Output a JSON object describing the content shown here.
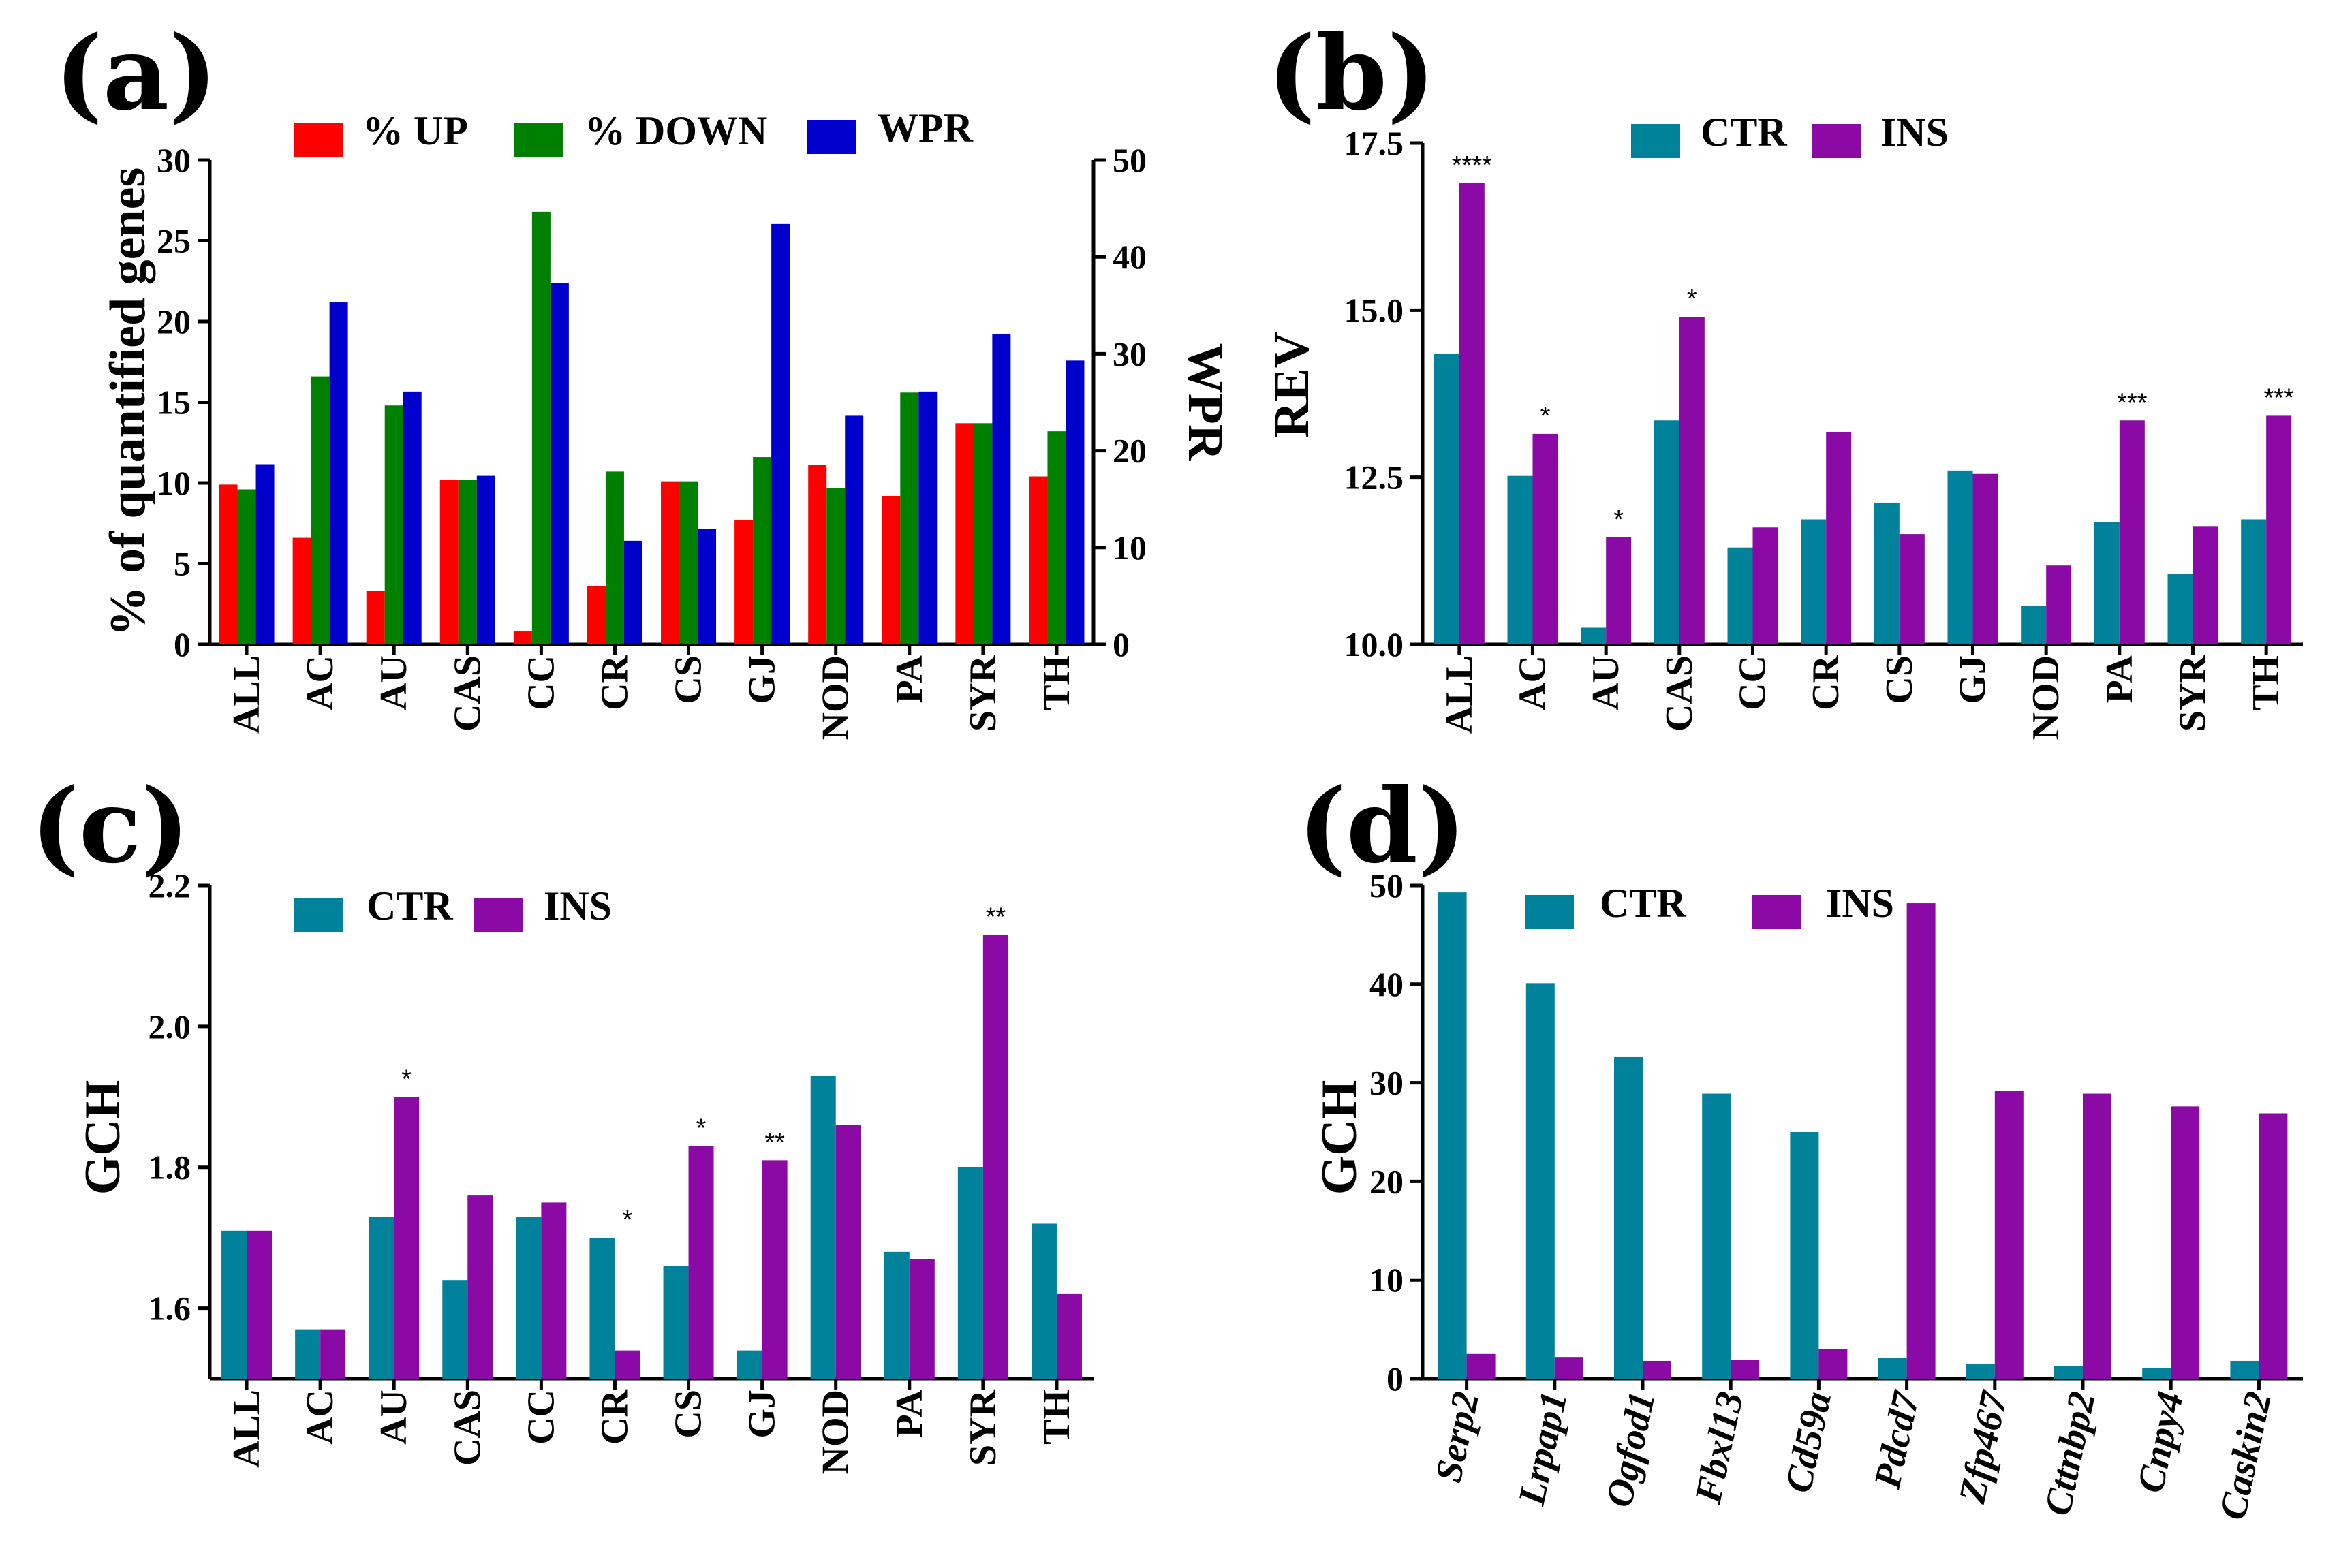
{
  "colors": {
    "up": "#FF0000",
    "down": "#008000",
    "wpr": "#0000CC",
    "ctr": "#00829B",
    "ins": "#8B0AA5"
  },
  "chart_data": [
    {
      "panel": "(a)",
      "type": "bar",
      "categories": [
        "ALL",
        "AC",
        "AU",
        "CAS",
        "CC",
        "CR",
        "CS",
        "GJ",
        "NOD",
        "PA",
        "SYR",
        "TH"
      ],
      "series": [
        {
          "name": "% UP",
          "axis": "left",
          "color_key": "up",
          "values": [
            9.9,
            6.6,
            3.3,
            10.2,
            0.8,
            3.6,
            10.1,
            7.7,
            11.1,
            9.2,
            13.7,
            10.4
          ]
        },
        {
          "name": "% DOWN",
          "axis": "left",
          "color_key": "down",
          "values": [
            9.6,
            16.6,
            14.8,
            10.2,
            26.8,
            10.7,
            10.1,
            11.6,
            9.7,
            15.6,
            13.7,
            13.2
          ]
        },
        {
          "name": "WPR",
          "axis": "right",
          "color_key": "wpr",
          "values": [
            18.6,
            35.3,
            26.1,
            17.4,
            37.3,
            10.7,
            11.9,
            43.4,
            23.6,
            26.1,
            32.0,
            29.3
          ]
        }
      ],
      "ylabel": "% of quantified genes",
      "ylabel_right": "WPR",
      "ylim": [
        0,
        30
      ],
      "yticks": [
        0,
        5,
        10,
        15,
        20,
        25,
        30
      ],
      "ylim_right": [
        0,
        50
      ],
      "yticks_right": [
        0,
        10,
        20,
        30,
        40,
        50
      ],
      "legend": "top"
    },
    {
      "panel": "(b)",
      "type": "bar",
      "categories": [
        "ALL",
        "AC",
        "AU",
        "CAS",
        "CC",
        "CR",
        "CS",
        "GJ",
        "NOD",
        "PA",
        "SYR",
        "TH"
      ],
      "series": [
        {
          "name": "CTR",
          "color_key": "ctr",
          "values": [
            14.35,
            12.52,
            10.25,
            13.35,
            11.45,
            11.87,
            12.12,
            12.6,
            10.58,
            11.83,
            11.05,
            11.87
          ]
        },
        {
          "name": "INS",
          "color_key": "ins",
          "values": [
            16.9,
            13.15,
            11.6,
            14.9,
            11.75,
            13.18,
            11.65,
            12.55,
            11.18,
            13.35,
            11.77,
            13.42
          ]
        }
      ],
      "significance": [
        "****",
        "*",
        "*",
        "*",
        "",
        "",
        "",
        "",
        "",
        "***",
        "",
        "***"
      ],
      "ylabel": "REV",
      "ylim": [
        10.0,
        17.5
      ],
      "yticks": [
        "10.0",
        "12.5",
        "15.0",
        "17.5"
      ],
      "legend": "top"
    },
    {
      "panel": "(c)",
      "type": "bar",
      "categories": [
        "ALL",
        "AC",
        "AU",
        "CAS",
        "CC",
        "CR",
        "CS",
        "GJ",
        "NOD",
        "PA",
        "SYR",
        "TH"
      ],
      "series": [
        {
          "name": "CTR",
          "color_key": "ctr",
          "values": [
            1.71,
            1.57,
            1.73,
            1.64,
            1.73,
            1.7,
            1.66,
            1.54,
            1.93,
            1.68,
            1.8,
            1.72
          ]
        },
        {
          "name": "INS",
          "color_key": "ins",
          "values": [
            1.71,
            1.57,
            1.9,
            1.76,
            1.75,
            1.54,
            1.83,
            1.81,
            1.86,
            1.67,
            2.13,
            1.62
          ]
        }
      ],
      "significance": [
        "",
        "",
        "*",
        "",
        "",
        "*",
        "*",
        "**",
        "",
        "",
        "**",
        ""
      ],
      "ylabel": "GCH",
      "ylim": [
        1.5,
        2.2
      ],
      "yticks": [
        "1.6",
        "1.8",
        "2.0",
        "2.2"
      ],
      "legend": "top"
    },
    {
      "panel": "(d)",
      "type": "bar",
      "categories": [
        "Serp2",
        "Lrpap1",
        "Ogfod1",
        "Fbxl13",
        "Cd59a",
        "Pdcd7",
        "Zfp467",
        "Cttnbp2",
        "Cnpy4",
        "Caskin2"
      ],
      "series": [
        {
          "name": "CTR",
          "color_key": "ctr",
          "values": [
            49.3,
            40.1,
            32.6,
            28.9,
            25.0,
            2.1,
            1.5,
            1.3,
            1.1,
            1.8
          ]
        },
        {
          "name": "INS",
          "color_key": "ins",
          "values": [
            2.5,
            2.2,
            1.8,
            1.9,
            3.0,
            48.2,
            29.2,
            28.9,
            27.6,
            26.9
          ]
        }
      ],
      "ylabel": "GCH",
      "ylim": [
        0,
        50
      ],
      "yticks": [
        0,
        10,
        20,
        30,
        40,
        50
      ],
      "legend": "top"
    }
  ]
}
